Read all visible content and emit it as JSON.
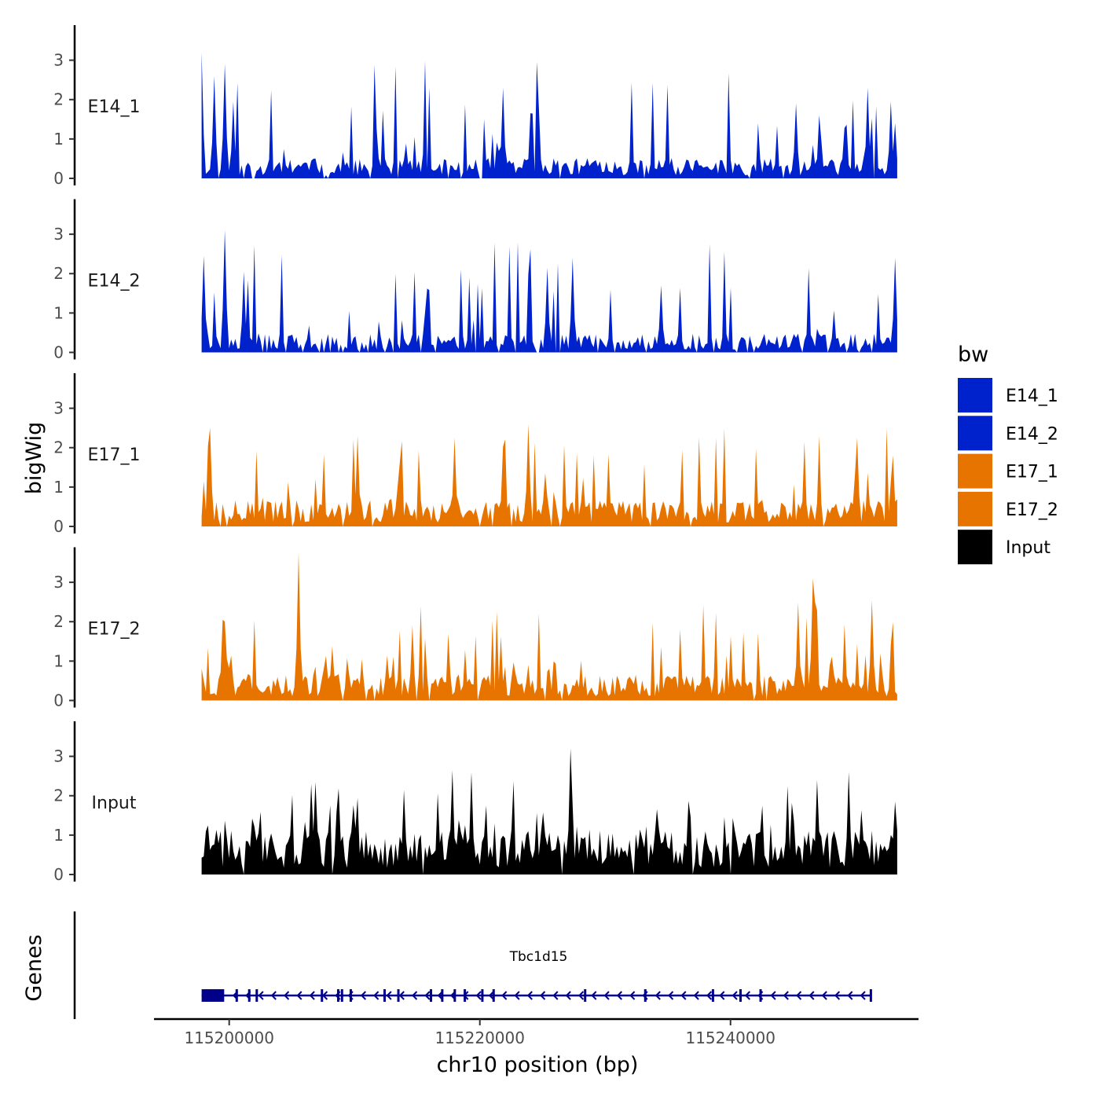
{
  "chart_data": {
    "type": "area",
    "title": "",
    "xlabel": "chr10 position (bp)",
    "ylabel": "bigWig",
    "genes_label": "Genes",
    "xlim": [
      115194000,
      115255000
    ],
    "data_x_range": [
      115197800,
      115253300
    ],
    "ylim": [
      0,
      3.85
    ],
    "x_ticks": [
      115200000,
      115220000,
      115240000
    ],
    "x_tick_labels": [
      "115200000",
      "115220000",
      "115240000"
    ],
    "y_ticks": [
      0,
      1,
      2,
      3
    ],
    "y_tick_labels": [
      "0",
      "1",
      "2",
      "3"
    ],
    "legend": {
      "title": "bw",
      "position": "right",
      "entries": [
        {
          "name": "E14_1",
          "color": "#0022CC"
        },
        {
          "name": "E14_2",
          "color": "#0022CC"
        },
        {
          "name": "E17_1",
          "color": "#E87400"
        },
        {
          "name": "E17_2",
          "color": "#E87400"
        },
        {
          "name": "Input",
          "color": "#000000"
        }
      ]
    },
    "series": [
      {
        "name": "E14_1",
        "color": "#0022CC",
        "seed": 11,
        "base": 0.38,
        "spike_prob": 0.13,
        "spike_max": 2.4,
        "gap_prob": 0.07,
        "peaks": [
          [
            115197800,
            3.2
          ],
          [
            115198800,
            2.6
          ],
          [
            115199600,
            2.9
          ],
          [
            115200300,
            1.95
          ],
          [
            115221800,
            2.3
          ],
          [
            115245300,
            1.9
          ],
          [
            115251000,
            2.3
          ],
          [
            115252800,
            1.95
          ],
          [
            115253200,
            1.4
          ]
        ]
      },
      {
        "name": "E14_2",
        "color": "#0022CC",
        "seed": 23,
        "base": 0.36,
        "spike_prob": 0.12,
        "spike_max": 2.2,
        "gap_prob": 0.08,
        "peaks": [
          [
            115197900,
            2.45
          ],
          [
            115199700,
            3.1
          ],
          [
            115201100,
            2.05
          ],
          [
            115225400,
            2.15
          ],
          [
            115227400,
            2.4
          ],
          [
            115234400,
            1.7
          ],
          [
            115253100,
            2.4
          ]
        ]
      },
      {
        "name": "E17_1",
        "color": "#E87400",
        "seed": 37,
        "base": 0.5,
        "spike_prob": 0.14,
        "spike_max": 1.9,
        "gap_prob": 0.04,
        "peaks": [
          [
            115198400,
            2.5
          ],
          [
            115210300,
            2.3
          ],
          [
            115217900,
            2.25
          ],
          [
            115223900,
            2.6
          ],
          [
            115250100,
            2.25
          ],
          [
            115253000,
            1.8
          ]
        ]
      },
      {
        "name": "E17_2",
        "color": "#E87400",
        "seed": 53,
        "base": 0.5,
        "spike_prob": 0.15,
        "spike_max": 1.9,
        "gap_prob": 0.04,
        "peaks": [
          [
            115199500,
            2.05
          ],
          [
            115205600,
            3.75
          ],
          [
            115214700,
            1.9
          ],
          [
            115245400,
            2.5
          ],
          [
            115246600,
            3.1
          ],
          [
            115251300,
            2.55
          ]
        ]
      },
      {
        "name": "Input",
        "color": "#000000",
        "seed": 71,
        "base": 0.85,
        "spike_prob": 0.18,
        "spike_max": 1.8,
        "gap_prob": 0.015,
        "peaks": [
          [
            115206600,
            2.3
          ],
          [
            115217800,
            2.65
          ],
          [
            115219300,
            2.6
          ],
          [
            115227300,
            3.2
          ],
          [
            115246900,
            2.4
          ],
          [
            115249500,
            2.6
          ]
        ]
      }
    ],
    "gene": {
      "name": "Tbc1d15",
      "strand": "-",
      "start": 115197800,
      "end": 115251200,
      "exon_box": [
        115197800,
        115199600
      ],
      "exons": [
        115200600,
        115201600,
        115202200,
        115207400,
        115208700,
        115209000,
        115209700,
        115212400,
        115213500,
        115216100,
        115217000,
        115218000,
        115218800,
        115220200,
        115221100,
        115228400,
        115233200,
        115238600,
        115240800,
        115242400,
        115251200
      ]
    }
  }
}
